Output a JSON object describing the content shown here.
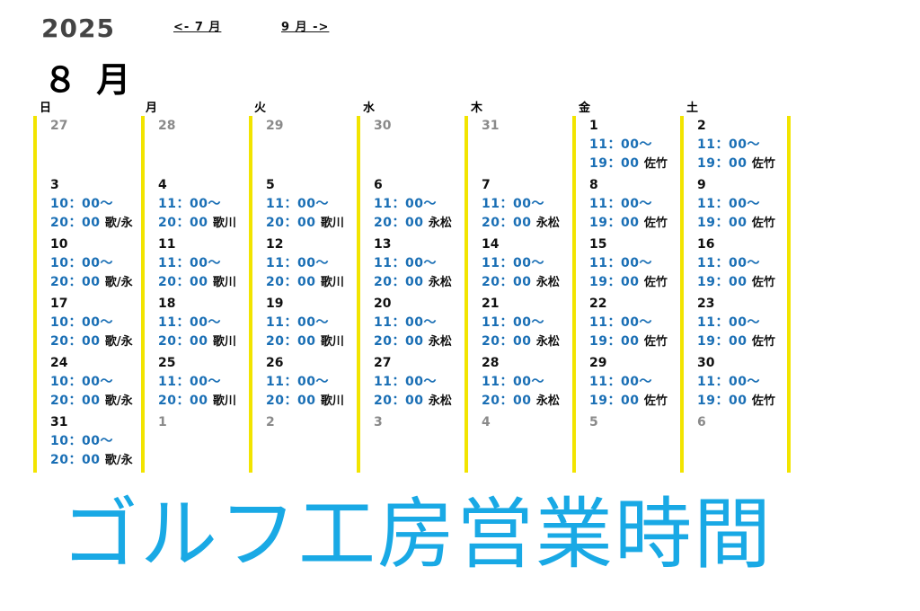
{
  "header": {
    "year": "2025",
    "month_label": "８ 月",
    "prev_link": "<- 7 月",
    "next_link": "9 月 ->"
  },
  "colors": {
    "time": "#1a6fb5",
    "banner": "#19a9e5",
    "divider": "#f2e400",
    "outside_day": "#8a8a8a"
  },
  "weekdays": [
    "日",
    "月",
    "火",
    "水",
    "木",
    "金",
    "土"
  ],
  "weeks": [
    [
      {
        "day": "27",
        "in": false
      },
      {
        "day": "28",
        "in": false
      },
      {
        "day": "29",
        "in": false
      },
      {
        "day": "30",
        "in": false
      },
      {
        "day": "31",
        "in": false
      },
      {
        "day": "1",
        "in": true,
        "open": "11：00～",
        "close": "19：00",
        "staff": "佐竹"
      },
      {
        "day": "2",
        "in": true,
        "open": "11：00～",
        "close": "19：00",
        "staff": "佐竹"
      }
    ],
    [
      {
        "day": "3",
        "in": true,
        "open": "10：00～",
        "close": "20：00",
        "staff": "歌/永"
      },
      {
        "day": "4",
        "in": true,
        "open": "11：00～",
        "close": "20：00",
        "staff": "歌川"
      },
      {
        "day": "5",
        "in": true,
        "open": "11：00～",
        "close": "20：00",
        "staff": "歌川"
      },
      {
        "day": "6",
        "in": true,
        "open": "11：00～",
        "close": "20：00",
        "staff": "永松"
      },
      {
        "day": "7",
        "in": true,
        "open": "11：00～",
        "close": "20：00",
        "staff": "永松"
      },
      {
        "day": "8",
        "in": true,
        "open": "11：00～",
        "close": "19：00",
        "staff": "佐竹"
      },
      {
        "day": "9",
        "in": true,
        "open": "11：00～",
        "close": "19：00",
        "staff": "佐竹"
      }
    ],
    [
      {
        "day": "10",
        "in": true,
        "open": "10：00～",
        "close": "20：00",
        "staff": "歌/永"
      },
      {
        "day": "11",
        "in": true,
        "open": "11：00～",
        "close": "20：00",
        "staff": "歌川"
      },
      {
        "day": "12",
        "in": true,
        "open": "11：00～",
        "close": "20：00",
        "staff": "歌川"
      },
      {
        "day": "13",
        "in": true,
        "open": "11：00～",
        "close": "20：00",
        "staff": "永松"
      },
      {
        "day": "14",
        "in": true,
        "open": "11：00～",
        "close": "20：00",
        "staff": "永松"
      },
      {
        "day": "15",
        "in": true,
        "open": "11：00～",
        "close": "19：00",
        "staff": "佐竹"
      },
      {
        "day": "16",
        "in": true,
        "open": "11：00～",
        "close": "19：00",
        "staff": "佐竹"
      }
    ],
    [
      {
        "day": "17",
        "in": true,
        "open": "10：00～",
        "close": "20：00",
        "staff": "歌/永"
      },
      {
        "day": "18",
        "in": true,
        "open": "11：00～",
        "close": "20：00",
        "staff": "歌川"
      },
      {
        "day": "19",
        "in": true,
        "open": "11：00～",
        "close": "20：00",
        "staff": "歌川"
      },
      {
        "day": "20",
        "in": true,
        "open": "11：00～",
        "close": "20：00",
        "staff": "永松"
      },
      {
        "day": "21",
        "in": true,
        "open": "11：00～",
        "close": "20：00",
        "staff": "永松"
      },
      {
        "day": "22",
        "in": true,
        "open": "11：00～",
        "close": "19：00",
        "staff": "佐竹"
      },
      {
        "day": "23",
        "in": true,
        "open": "11：00～",
        "close": "19：00",
        "staff": "佐竹"
      }
    ],
    [
      {
        "day": "24",
        "in": true,
        "open": "10：00～",
        "close": "20：00",
        "staff": "歌/永"
      },
      {
        "day": "25",
        "in": true,
        "open": "11：00～",
        "close": "20：00",
        "staff": "歌川"
      },
      {
        "day": "26",
        "in": true,
        "open": "11：00～",
        "close": "20：00",
        "staff": "歌川"
      },
      {
        "day": "27",
        "in": true,
        "open": "11：00～",
        "close": "20：00",
        "staff": "永松"
      },
      {
        "day": "28",
        "in": true,
        "open": "11：00～",
        "close": "20：00",
        "staff": "永松"
      },
      {
        "day": "29",
        "in": true,
        "open": "11：00～",
        "close": "19：00",
        "staff": "佐竹"
      },
      {
        "day": "30",
        "in": true,
        "open": "11：00～",
        "close": "19：00",
        "staff": "佐竹"
      }
    ],
    [
      {
        "day": "31",
        "in": true,
        "open": "10：00～",
        "close": "20：00",
        "staff": "歌/永"
      },
      {
        "day": "1",
        "in": false
      },
      {
        "day": "2",
        "in": false
      },
      {
        "day": "3",
        "in": false
      },
      {
        "day": "4",
        "in": false
      },
      {
        "day": "5",
        "in": false
      },
      {
        "day": "6",
        "in": false
      }
    ]
  ],
  "banner": "ゴルフ工房営業時間"
}
